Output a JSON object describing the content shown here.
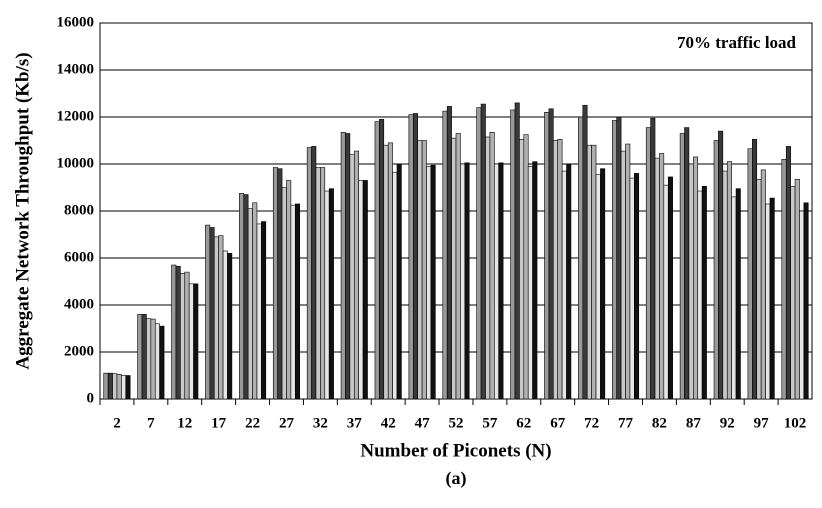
{
  "chart_data": {
    "type": "bar",
    "annotation": "70% traffic load",
    "x_label": "Number of Piconets (N)",
    "y_label": "Aggregate Network Throughput (Kb/s)",
    "caption": "(a)",
    "categories": [
      "2",
      "7",
      "12",
      "17",
      "22",
      "27",
      "32",
      "37",
      "42",
      "47",
      "52",
      "57",
      "62",
      "67",
      "72",
      "77",
      "82",
      "87",
      "92",
      "97",
      "102"
    ],
    "series": [
      {
        "color": "#9a9a9a",
        "values": [
          1100,
          3600,
          5700,
          7400,
          8750,
          9850,
          10700,
          11350,
          11800,
          12100,
          12250,
          12400,
          12300,
          12200,
          12000,
          11850,
          11550,
          11300,
          11000,
          10650,
          10200
        ]
      },
      {
        "color": "#3a3a3a",
        "values": [
          1100,
          3600,
          5650,
          7300,
          8700,
          9800,
          10750,
          11300,
          11900,
          12150,
          12450,
          12550,
          12600,
          12350,
          12500,
          12000,
          11950,
          11550,
          11400,
          11050,
          10750
        ]
      },
      {
        "color": "#c8c8c8",
        "values": [
          1080,
          3420,
          5350,
          6900,
          8100,
          9000,
          9850,
          10400,
          10800,
          11000,
          11100,
          11150,
          11050,
          11000,
          10800,
          10550,
          10250,
          10000,
          9700,
          9350,
          9050
        ]
      },
      {
        "color": "#b0b0b0",
        "values": [
          1050,
          3400,
          5400,
          6950,
          8350,
          9300,
          9850,
          10550,
          10900,
          11000,
          11300,
          11350,
          11250,
          11050,
          10800,
          10850,
          10450,
          10300,
          10100,
          9750,
          9350
        ]
      },
      {
        "color": "#e6e6e6",
        "values": [
          1000,
          3200,
          4900,
          6300,
          7450,
          8250,
          8850,
          9300,
          9650,
          9900,
          10000,
          10000,
          9900,
          9700,
          9550,
          9400,
          9100,
          8850,
          8600,
          8300,
          8000
        ]
      },
      {
        "color": "#111111",
        "values": [
          1000,
          3100,
          4900,
          6200,
          7550,
          8300,
          8950,
          9300,
          10000,
          9950,
          10050,
          10050,
          10100,
          10000,
          9800,
          9600,
          9450,
          9050,
          8950,
          8550,
          8350
        ]
      }
    ],
    "ylim": [
      0,
      16000
    ],
    "yticks": [
      0,
      2000,
      4000,
      6000,
      8000,
      10000,
      12000,
      14000,
      16000
    ],
    "grid": true
  }
}
